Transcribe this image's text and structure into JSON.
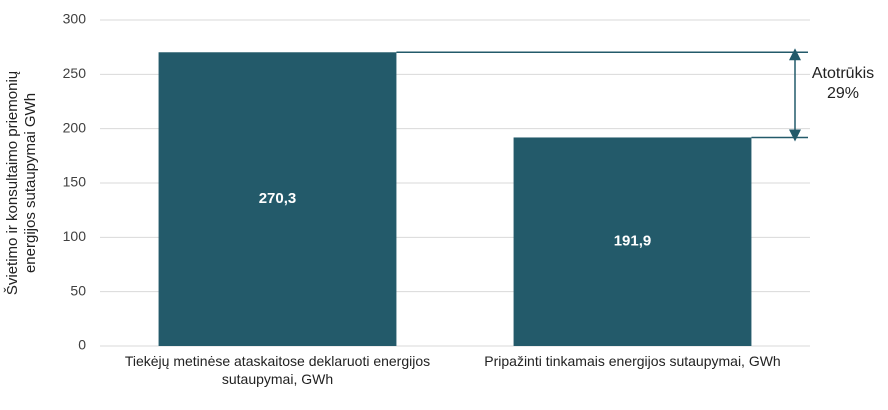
{
  "chart_data": {
    "type": "bar",
    "y_label": [
      "Švietimo ir konsultaimo priemonių",
      "energijos sutaupymai GWh"
    ],
    "categories": [
      "Tiekėjų metinėse ataskaitose deklaruoti energijos sutaupymai, GWh",
      "Pripažinti tinkamais energijos sutaupymai, GWh"
    ],
    "values": [
      270.3,
      191.9
    ],
    "value_labels": [
      "270,3",
      "191,9"
    ],
    "color": "#235a6a",
    "annotation": "Atotrūkis 29%",
    "ylim": [
      0,
      300
    ],
    "yticks": [
      0,
      50,
      100,
      150,
      200,
      250,
      300
    ],
    "grid": true
  }
}
